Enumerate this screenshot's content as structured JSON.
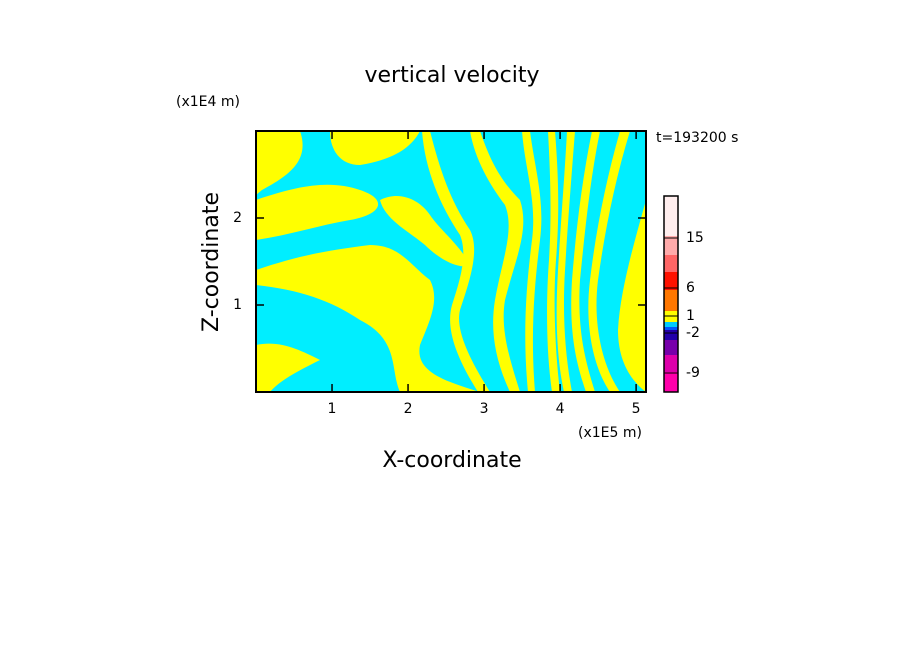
{
  "chart_data": {
    "type": "contour",
    "title": "vertical velocity",
    "x_label": "X-coordinate",
    "y_label": "Z-coordinate",
    "x_unit": "(x1E5 m)",
    "y_unit": "(x1E4 m)",
    "time_label": "t=193200 s",
    "xlim": [
      0,
      5.13
    ],
    "ylim": [
      0,
      3
    ],
    "xticks": [
      1,
      2,
      3,
      4,
      5
    ],
    "yticks": [
      1,
      2
    ],
    "field_colors": [
      "#00eeff",
      "#ffff00"
    ],
    "colorbar": {
      "colors": [
        "#ff00aa",
        "#dd00aa",
        "#7700aa",
        "#2200aa",
        "#0055ff",
        "#00ccff",
        "#ffff00",
        "#ff7700",
        "#ff1100",
        "#ff6666",
        "#ffaaaa",
        "#ffeeee"
      ],
      "ticks": [
        -9,
        -2,
        1,
        6,
        15
      ]
    }
  }
}
